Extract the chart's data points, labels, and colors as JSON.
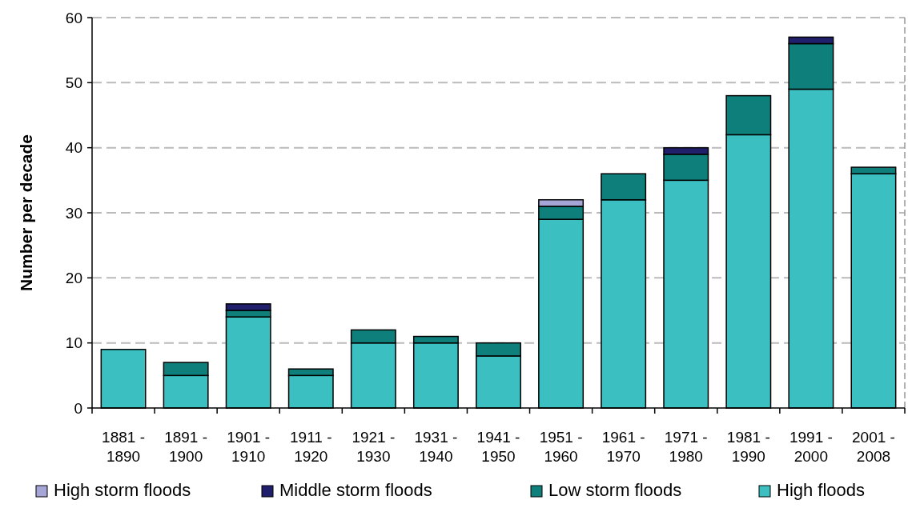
{
  "chart_data": {
    "type": "bar",
    "ylabel": "Number per decade",
    "stacked": true,
    "categories": [
      "1881 - 1890",
      "1891 - 1900",
      "1901 - 1910",
      "1911 - 1920",
      "1921 - 1930",
      "1931 - 1940",
      "1941 - 1950",
      "1951 - 1960",
      "1961 - 1970",
      "1971 - 1980",
      "1981 - 1990",
      "1991 - 2000",
      "2001 - 2008"
    ],
    "series": [
      {
        "name": "High floods",
        "color": "#3bbfc0",
        "values": [
          9,
          5,
          14,
          5,
          10,
          10,
          8,
          29,
          32,
          35,
          42,
          49,
          36
        ]
      },
      {
        "name": "Low storm floods",
        "color": "#0f7f7b",
        "values": [
          0,
          2,
          1,
          1,
          2,
          1,
          2,
          2,
          4,
          4,
          6,
          7,
          1
        ]
      },
      {
        "name": "Middle storm floods",
        "color": "#1f1f6b",
        "values": [
          0,
          0,
          1,
          0,
          0,
          0,
          0,
          0,
          0,
          1,
          0,
          1,
          0
        ]
      },
      {
        "name": "High storm floods",
        "color": "#a6a6d6",
        "values": [
          0,
          0,
          0,
          0,
          0,
          0,
          0,
          1,
          0,
          0,
          0,
          0,
          0
        ]
      }
    ],
    "ylim": [
      0,
      60
    ],
    "yticks": [
      0,
      10,
      20,
      30,
      40,
      50,
      60
    ],
    "grid": "y",
    "legend": "bottom"
  }
}
